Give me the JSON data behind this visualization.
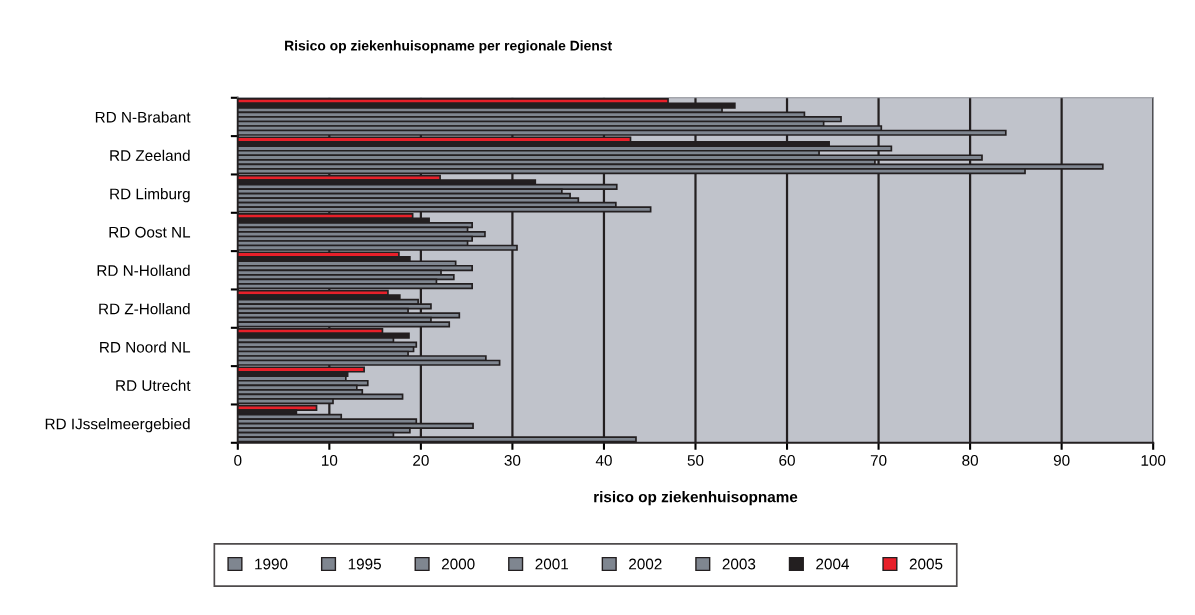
{
  "chart_data": {
    "type": "bar",
    "orientation": "horizontal",
    "title": "Risico op ziekenhuisopname per regionale Dienst",
    "xlabel": "risico op ziekenhuisopname",
    "categories": [
      "RD N-Brabant",
      "RD Zeeland",
      "RD Limburg",
      "RD Oost NL",
      "RD N-Holland",
      "RD Z-Holland",
      "RD Noord NL",
      "RD Utrecht",
      "RD IJsselmeergebied"
    ],
    "series": [
      {
        "name": "2005",
        "color": "#e8202a",
        "values": [
          47.0,
          42.9,
          22.1,
          19.1,
          17.6,
          16.4,
          15.8,
          13.8,
          8.6
        ]
      },
      {
        "name": "2004",
        "color": "#231f20",
        "values": [
          54.3,
          64.6,
          32.5,
          20.9,
          18.8,
          17.7,
          18.7,
          12.0,
          6.4
        ]
      },
      {
        "name": "2003",
        "color": "#7f8690",
        "values": [
          52.9,
          71.4,
          41.4,
          25.6,
          23.8,
          19.7,
          17.0,
          11.8,
          11.3
        ]
      },
      {
        "name": "2002",
        "color": "#7f8690",
        "values": [
          61.9,
          63.5,
          35.4,
          25.1,
          25.6,
          21.1,
          19.5,
          14.2,
          19.5
        ]
      },
      {
        "name": "2001",
        "color": "#7f8690",
        "values": [
          65.9,
          81.3,
          36.3,
          27.0,
          22.2,
          18.6,
          19.2,
          13.0,
          25.7
        ]
      },
      {
        "name": "2000",
        "color": "#7f8690",
        "values": [
          64.0,
          69.6,
          37.2,
          25.6,
          23.6,
          24.2,
          18.6,
          13.6,
          18.8
        ]
      },
      {
        "name": "1995",
        "color": "#7f8690",
        "values": [
          70.3,
          94.5,
          41.3,
          25.1,
          21.7,
          21.1,
          27.1,
          18.0,
          17.0
        ]
      },
      {
        "name": "1990",
        "color": "#7f8690",
        "values": [
          83.9,
          86,
          45.1,
          30.5,
          25.6,
          23.1,
          28.6,
          10.4,
          43.5
        ]
      }
    ],
    "xlim": [
      0,
      100
    ],
    "xticks": [
      0,
      10,
      20,
      30,
      40,
      50,
      60,
      70,
      80,
      90,
      100
    ],
    "grid": "x",
    "legend": "bottom"
  }
}
